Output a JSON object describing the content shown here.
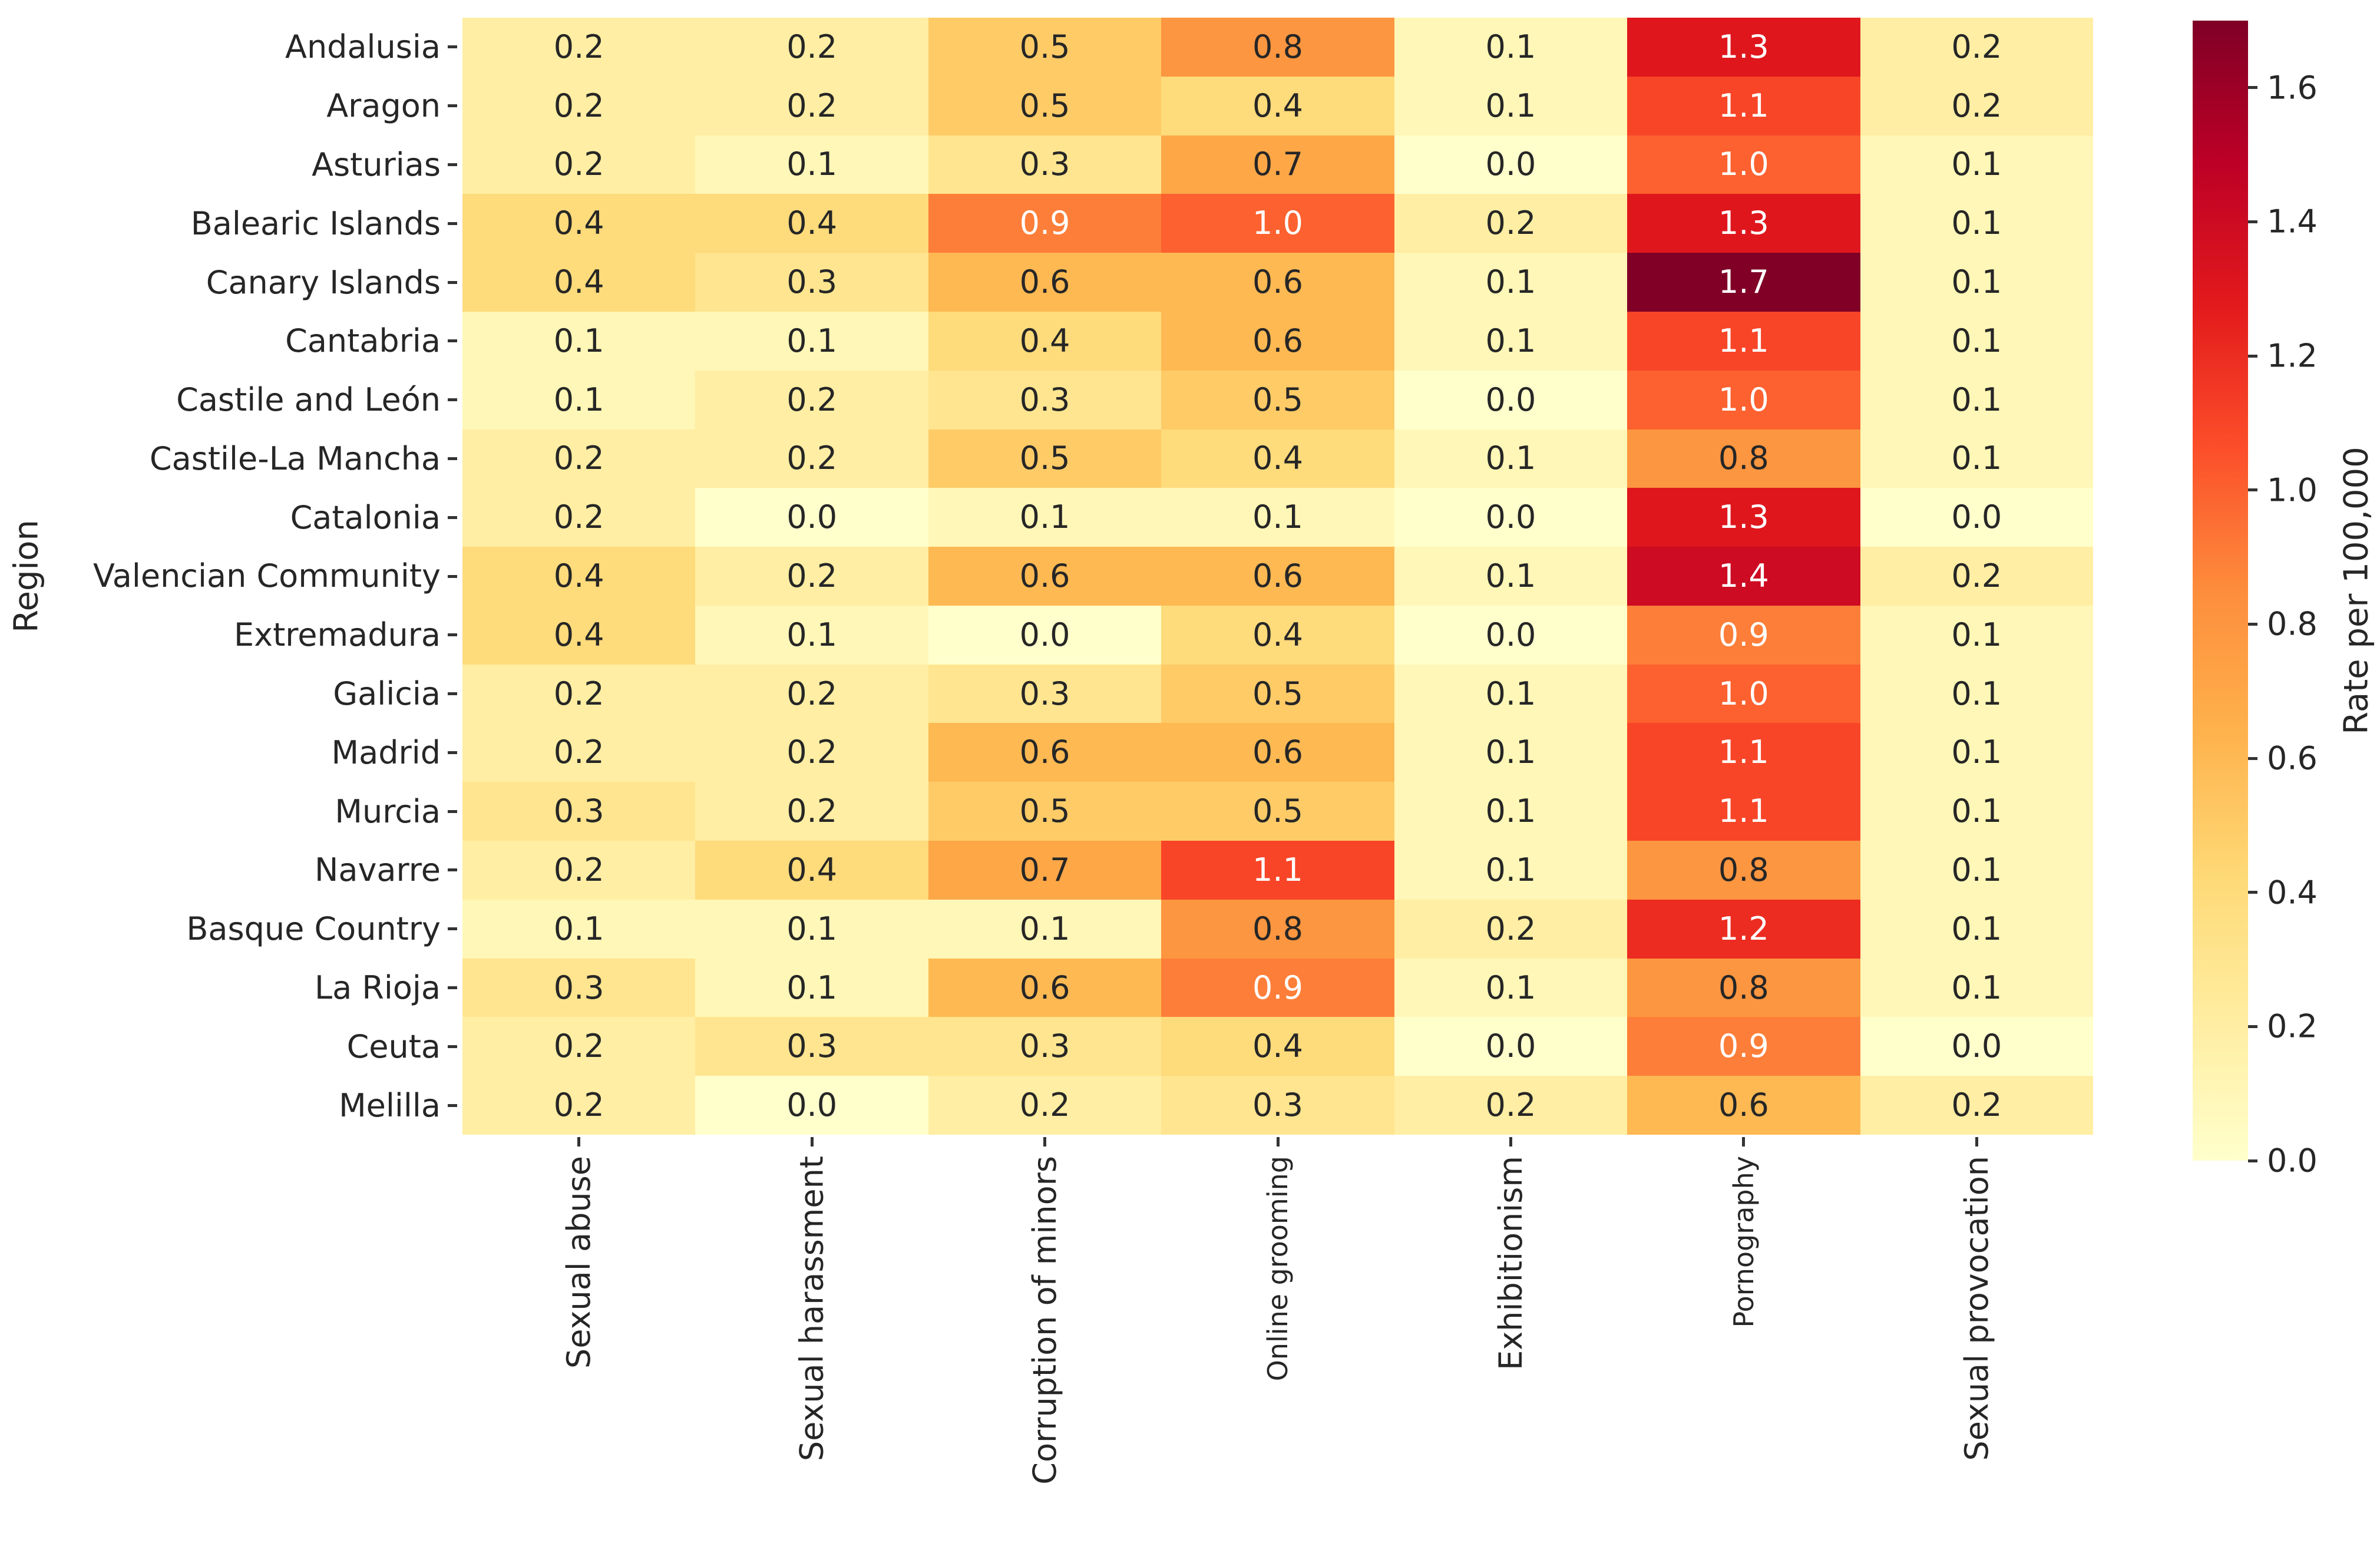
{
  "chart_data": {
    "type": "heatmap",
    "ylabel": "Region",
    "colorbar_label": "Rate per 100,000",
    "rows": [
      "Andalusia",
      "Aragon",
      "Asturias",
      "Balearic Islands",
      "Canary Islands",
      "Cantabria",
      "Castile and León",
      "Castile-La Mancha",
      "Catalonia",
      "Valencian Community",
      "Extremadura",
      "Galicia",
      "Madrid",
      "Murcia",
      "Navarre",
      "Basque Country",
      "La Rioja",
      "Ceuta",
      "Melilla"
    ],
    "columns": [
      {
        "label": "Sexual abuse",
        "small": false
      },
      {
        "label": "Sexual harassment",
        "small": false
      },
      {
        "label": "Corruption of minors",
        "small": false
      },
      {
        "label": "Online grooming",
        "small": true
      },
      {
        "label": "Exhibitionism",
        "small": false
      },
      {
        "label": "Pornography",
        "small": true
      },
      {
        "label": "Sexual provocation",
        "small": false
      }
    ],
    "values": [
      [
        0.2,
        0.2,
        0.5,
        0.8,
        0.1,
        1.3,
        0.2
      ],
      [
        0.2,
        0.2,
        0.5,
        0.4,
        0.1,
        1.1,
        0.2
      ],
      [
        0.2,
        0.1,
        0.3,
        0.7,
        0.0,
        1.0,
        0.1
      ],
      [
        0.4,
        0.4,
        0.9,
        1.0,
        0.2,
        1.3,
        0.1
      ],
      [
        0.4,
        0.3,
        0.6,
        0.6,
        0.1,
        1.7,
        0.1
      ],
      [
        0.1,
        0.1,
        0.4,
        0.6,
        0.1,
        1.1,
        0.1
      ],
      [
        0.1,
        0.2,
        0.3,
        0.5,
        0.0,
        1.0,
        0.1
      ],
      [
        0.2,
        0.2,
        0.5,
        0.4,
        0.1,
        0.8,
        0.1
      ],
      [
        0.2,
        0.0,
        0.1,
        0.1,
        0.0,
        1.3,
        0.0
      ],
      [
        0.4,
        0.2,
        0.6,
        0.6,
        0.1,
        1.4,
        0.2
      ],
      [
        0.4,
        0.1,
        0.0,
        0.4,
        0.0,
        0.9,
        0.1
      ],
      [
        0.2,
        0.2,
        0.3,
        0.5,
        0.1,
        1.0,
        0.1
      ],
      [
        0.2,
        0.2,
        0.6,
        0.6,
        0.1,
        1.1,
        0.1
      ],
      [
        0.3,
        0.2,
        0.5,
        0.5,
        0.1,
        1.1,
        0.1
      ],
      [
        0.2,
        0.4,
        0.7,
        1.1,
        0.1,
        0.8,
        0.1
      ],
      [
        0.1,
        0.1,
        0.1,
        0.8,
        0.2,
        1.2,
        0.1
      ],
      [
        0.3,
        0.1,
        0.6,
        0.9,
        0.1,
        0.8,
        0.1
      ],
      [
        0.2,
        0.3,
        0.3,
        0.4,
        0.0,
        0.9,
        0.0
      ],
      [
        0.2,
        0.0,
        0.2,
        0.3,
        0.2,
        0.6,
        0.2
      ]
    ],
    "value_decimals": 1,
    "vmin": 0.0,
    "vmax": 1.7,
    "colormap": {
      "name": "YlOrRd",
      "stops": [
        "#ffffcc",
        "#ffeda0",
        "#fed976",
        "#feb24c",
        "#fd8d3c",
        "#fc4e2a",
        "#e31a1c",
        "#bd0026",
        "#800026"
      ]
    },
    "colorbar_ticks": [
      0.0,
      0.2,
      0.4,
      0.6,
      0.8,
      1.0,
      1.2,
      1.4,
      1.6
    ],
    "annotation_text_dark": "#262626",
    "annotation_text_light": "#ffffff",
    "grid": false,
    "legend_position": "right-colorbar"
  }
}
